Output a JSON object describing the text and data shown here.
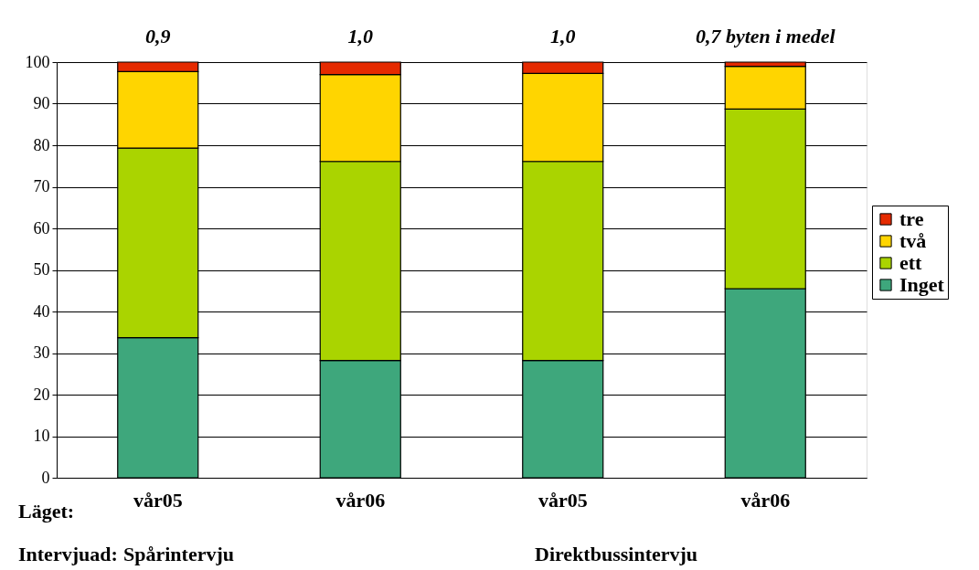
{
  "chart_data": {
    "type": "bar",
    "stacked": true,
    "xlabel": "Läget:",
    "categories": [
      "vår05",
      "vår06",
      "vår05",
      "vår06"
    ],
    "series": [
      {
        "name": "Inget",
        "color": "#3ea77c",
        "values": [
          33.7,
          28.2,
          28.2,
          45.5
        ]
      },
      {
        "name": "ett",
        "color": "#aad400",
        "values": [
          45.6,
          47.9,
          47.9,
          43.2
        ]
      },
      {
        "name": "två",
        "color": "#ffd500",
        "values": [
          18.4,
          20.9,
          21.2,
          10.3
        ]
      },
      {
        "name": "tre",
        "color": "#e52a00",
        "values": [
          2.3,
          3.0,
          2.7,
          1.0
        ]
      }
    ],
    "annotations": [
      "0,9",
      "1,0",
      "1,0",
      "0,7  byten i medel",
      "Intervjuad:",
      "Spårintervju",
      "Direktbussintervju"
    ],
    "ylim": [
      0,
      100
    ],
    "yticks": [
      0,
      10,
      20,
      30,
      40,
      50,
      60,
      70,
      80,
      90,
      100
    ],
    "grid": "y",
    "legend": "right"
  }
}
